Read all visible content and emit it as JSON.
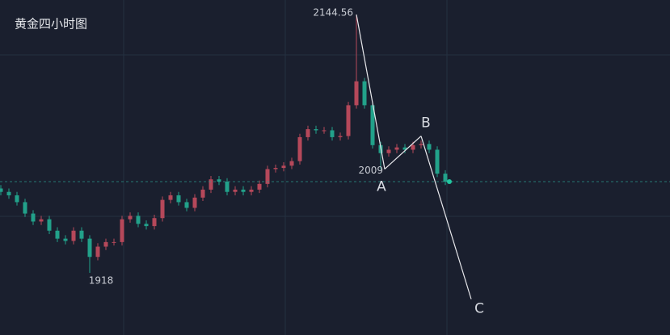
{
  "chart_data": {
    "type": "candlestick",
    "title": "黄金四小时图",
    "ylim": [
      1863.5,
      2157.3
    ],
    "up_color": "#b5485a",
    "down_color": "#22a18a",
    "open": [
      1992,
      1989,
      1986,
      1980,
      1970,
      1963,
      1965,
      1955,
      1948,
      1946,
      1955,
      1948,
      1932,
      1941,
      1945,
      1945,
      1965,
      1968,
      1961,
      1959,
      1966,
      1982,
      1986,
      1980,
      1975,
      1984,
      1991,
      2000,
      1998,
      1989,
      1991,
      1989,
      1991,
      1996,
      2009,
      2010,
      2012,
      2016,
      2037,
      2044,
      2043,
      2043,
      2037,
      2038,
      2065,
      2086,
      2065,
      2030,
      2023,
      2026,
      2028,
      2026,
      2030,
      2031,
      2026,
      2005
    ],
    "high": [
      1995,
      1992,
      1989,
      1983,
      1973,
      1968,
      1968,
      1958,
      1951,
      1958,
      1958,
      1951,
      1944,
      1948,
      1948,
      1968,
      1971,
      1971,
      1964,
      1969,
      1985,
      1989,
      1989,
      1983,
      1987,
      1994,
      2003,
      2003,
      2001,
      1994,
      1994,
      1994,
      1999,
      2012,
      2013,
      2015,
      2019,
      2040,
      2047,
      2047,
      2046,
      2046,
      2041,
      2068,
      2144.56,
      2089,
      2068,
      2033,
      2029,
      2031,
      2031,
      2033,
      2034,
      2034,
      2029,
      2008
    ],
    "low": [
      1986,
      1983,
      1977,
      1967,
      1960,
      1960,
      1952,
      1945,
      1943,
      1943,
      1945,
      1918,
      1929,
      1938,
      1942,
      1942,
      1962,
      1958,
      1956,
      1956,
      1963,
      1979,
      1977,
      1972,
      1972,
      1981,
      1988,
      1995,
      1986,
      1986,
      1986,
      1986,
      1988,
      1993,
      2006,
      2007,
      2009,
      2013,
      2034,
      2040,
      2040,
      2034,
      2034,
      2035,
      2062,
      2062,
      2027,
      2009,
      2020,
      2023,
      2023,
      2023,
      2027,
      2023,
      2002,
      1995
    ],
    "close": [
      1989,
      1986,
      1980,
      1970,
      1963,
      1965,
      1955,
      1948,
      1946,
      1955,
      1948,
      1932,
      1941,
      1945,
      1945,
      1965,
      1968,
      1961,
      1959,
      1966,
      1982,
      1986,
      1980,
      1975,
      1984,
      1991,
      2000,
      1998,
      1989,
      1991,
      1989,
      1991,
      1996,
      2009,
      2010,
      2012,
      2016,
      2037,
      2044,
      2043,
      2043,
      2037,
      2038,
      2065,
      2086,
      2065,
      2030,
      2023,
      2026,
      2028,
      2026,
      2030,
      2031,
      2026,
      2005,
      1998
    ],
    "price_labels": [
      2144.56,
      2009,
      1918
    ],
    "wave": {
      "points": [
        "A",
        "B",
        "C"
      ],
      "values": [
        2009,
        2038,
        1895
      ]
    }
  }
}
